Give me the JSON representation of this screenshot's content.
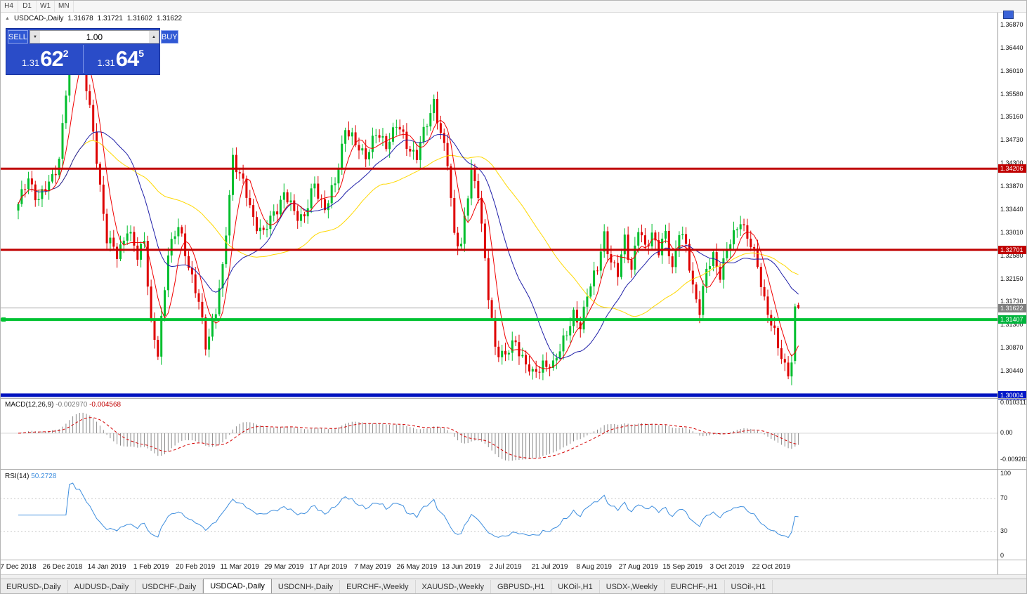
{
  "toolbar": {
    "timeframes": [
      "H4",
      "D1",
      "W1",
      "MN"
    ]
  },
  "icons": {
    "collapse": "▲",
    "vol_down": "▼",
    "vol_up": "▲"
  },
  "chart": {
    "title": "USDCAD-,Daily",
    "o": "1.31678",
    "h": "1.31721",
    "l": "1.31602",
    "c": "1.31622"
  },
  "one_click": {
    "sell_label": "SELL",
    "buy_label": "BUY",
    "volume": "1.00",
    "sell_big": "1.31",
    "sell_pips": "62",
    "sell_sup": "2",
    "buy_big": "1.31",
    "buy_pips": "64",
    "buy_sup": "5"
  },
  "price_axis": {
    "ticks": [
      "1.36870",
      "1.36440",
      "1.36010",
      "1.35580",
      "1.35160",
      "1.34730",
      "1.34300",
      "1.33870",
      "1.33440",
      "1.33010",
      "1.32580",
      "1.32150",
      "1.31730",
      "1.31300",
      "1.30870",
      "1.30440"
    ],
    "badges": [
      {
        "label": "1.34206",
        "price": 1.34206,
        "color": "#C00000"
      },
      {
        "label": "1.32701",
        "price": 1.32701,
        "color": "#C00000"
      },
      {
        "label": "1.31622",
        "price": 1.31622,
        "color": "#808080"
      },
      {
        "label": "1.31407",
        "price": 1.31407,
        "color": "#00B43C"
      },
      {
        "label": "1.30004",
        "price": 1.30004,
        "color": "#0018C8"
      }
    ]
  },
  "hlines": [
    {
      "price": 1.34206,
      "color": "#C00000",
      "thickness": 3,
      "name": "resistance-line-upper"
    },
    {
      "price": 1.32701,
      "color": "#C00000",
      "thickness": 3,
      "name": "resistance-line-lower"
    },
    {
      "price": 1.31407,
      "color": "#00C232",
      "thickness": 4,
      "name": "support-line-green",
      "handle": true
    },
    {
      "price": 1.30004,
      "color": "#0013C0",
      "thickness": 5,
      "name": "support-line-blue"
    },
    {
      "price": 1.31622,
      "color": "#ababab",
      "thickness": 1,
      "name": "current-price-line",
      "under": true
    }
  ],
  "macd": {
    "label": "MACD(12,26,9)",
    "value_main": "-0.002970",
    "value_signal": "-0.004568",
    "axis": [
      {
        "label": "0.010311",
        "value": 0.010311
      },
      {
        "label": "0.00",
        "value": 0
      },
      {
        "label": "-0.009203",
        "value": -0.009203
      }
    ]
  },
  "rsi": {
    "label": "RSI(14)",
    "value": "50.2728",
    "axis": [
      {
        "label": "100",
        "value": 100
      },
      {
        "label": "70",
        "value": 70
      },
      {
        "label": "30",
        "value": 30
      },
      {
        "label": "0",
        "value": 0
      }
    ],
    "levels": [
      70,
      30
    ]
  },
  "date_axis": {
    "step": 13,
    "labels": [
      "7 Dec 2018",
      "26 Dec 2018",
      "14 Jan 2019",
      "1 Feb 2019",
      "20 Feb 2019",
      "11 Mar 2019",
      "29 Mar 2019",
      "17 Apr 2019",
      "7 May 2019",
      "26 May 2019",
      "13 Jun 2019",
      "2 Jul 2019",
      "21 Jul 2019",
      "8 Aug 2019",
      "27 Aug 2019",
      "15 Sep 2019",
      "3 Oct 2019",
      "22 Oct 2019"
    ]
  },
  "tabs": {
    "active": "USDCAD-,Daily",
    "items": [
      "EURUSD-,Daily",
      "AUDUSD-,Daily",
      "USDCHF-,Daily",
      "USDCAD-,Daily",
      "USDCNH-,Daily",
      "EURCHF-,Weekly",
      "XAUUSD-,Weekly",
      "GBPUSD-,H1",
      "UKOil-,H1",
      "USDX-,Weekly",
      "EURCHF-,H1",
      "USOil-,H1"
    ],
    "note": "bottom chart tabs"
  },
  "chart_data": {
    "type": "candlestick",
    "symbol": "USDCAD",
    "timeframe": "Daily",
    "candle_count": 230,
    "ylim": [
      1.2995,
      1.371
    ],
    "colors": {
      "up": "#00BE2D",
      "down": "#DE0000",
      "ma_fast": "#F00000",
      "ma_mid": "#1F1FA8",
      "ma_slow": "#FFD800",
      "macd_hist": "#8A8A8A",
      "macd_signal": "#D40000",
      "rsi": "#3E8EDE"
    },
    "ma_periods": {
      "fast": 6,
      "mid": 20,
      "slow": 45
    },
    "noise_amp": 0.0015,
    "wick_amp": 0.0013,
    "macd_params": {
      "fast": 12,
      "slow": 26,
      "signal": 9
    },
    "rsi_period": 14,
    "waypoints": [
      [
        0,
        1.3355
      ],
      [
        3,
        1.34
      ],
      [
        6,
        1.3365
      ],
      [
        9,
        1.339
      ],
      [
        12,
        1.344
      ],
      [
        14,
        1.356
      ],
      [
        16,
        1.366
      ],
      [
        18,
        1.3635
      ],
      [
        20,
        1.357
      ],
      [
        23,
        1.344
      ],
      [
        26,
        1.329
      ],
      [
        29,
        1.326
      ],
      [
        32,
        1.331
      ],
      [
        35,
        1.3255
      ],
      [
        37,
        1.3295
      ],
      [
        39,
        1.313
      ],
      [
        41,
        1.3072
      ],
      [
        44,
        1.327
      ],
      [
        47,
        1.331
      ],
      [
        50,
        1.3245
      ],
      [
        53,
        1.317
      ],
      [
        55,
        1.3092
      ],
      [
        58,
        1.316
      ],
      [
        60,
        1.323
      ],
      [
        63,
        1.3445
      ],
      [
        66,
        1.339
      ],
      [
        69,
        1.333
      ],
      [
        72,
        1.3298
      ],
      [
        75,
        1.334
      ],
      [
        78,
        1.3372
      ],
      [
        81,
        1.334
      ],
      [
        84,
        1.3332
      ],
      [
        87,
        1.339
      ],
      [
        90,
        1.3348
      ],
      [
        93,
        1.339
      ],
      [
        96,
        1.35
      ],
      [
        99,
        1.3462
      ],
      [
        102,
        1.3448
      ],
      [
        105,
        1.3482
      ],
      [
        108,
        1.3468
      ],
      [
        111,
        1.35
      ],
      [
        114,
        1.3468
      ],
      [
        117,
        1.3442
      ],
      [
        120,
        1.3508
      ],
      [
        122,
        1.3548
      ],
      [
        124,
        1.348
      ],
      [
        126,
        1.3432
      ],
      [
        128,
        1.3302
      ],
      [
        130,
        1.3275
      ],
      [
        133,
        1.3418
      ],
      [
        135,
        1.338
      ],
      [
        138,
        1.318
      ],
      [
        140,
        1.3092
      ],
      [
        143,
        1.3072
      ],
      [
        146,
        1.31
      ],
      [
        149,
        1.3058
      ],
      [
        151,
        1.3035
      ],
      [
        154,
        1.3062
      ],
      [
        157,
        1.305
      ],
      [
        160,
        1.3108
      ],
      [
        163,
        1.3145
      ],
      [
        165,
        1.3125
      ],
      [
        167,
        1.3195
      ],
      [
        170,
        1.3232
      ],
      [
        172,
        1.3298
      ],
      [
        174,
        1.3252
      ],
      [
        176,
        1.3222
      ],
      [
        178,
        1.329
      ],
      [
        180,
        1.3238
      ],
      [
        182,
        1.3308
      ],
      [
        184,
        1.327
      ],
      [
        186,
        1.3305
      ],
      [
        188,
        1.3268
      ],
      [
        190,
        1.3295
      ],
      [
        192,
        1.3238
      ],
      [
        194,
        1.3308
      ],
      [
        196,
        1.3272
      ],
      [
        198,
        1.3202
      ],
      [
        200,
        1.3162
      ],
      [
        202,
        1.3228
      ],
      [
        204,
        1.3258
      ],
      [
        206,
        1.3228
      ],
      [
        208,
        1.3268
      ],
      [
        210,
        1.3295
      ],
      [
        212,
        1.333
      ],
      [
        214,
        1.3292
      ],
      [
        217,
        1.3242
      ],
      [
        219,
        1.318
      ],
      [
        221,
        1.313
      ],
      [
        223,
        1.309
      ],
      [
        225,
        1.3058
      ],
      [
        226,
        1.3045
      ],
      [
        227,
        1.3062
      ],
      [
        228,
        1.3165
      ],
      [
        229,
        1.3162
      ]
    ],
    "final_candles": [
      {
        "o": 1.3064,
        "h": 1.317,
        "l": 1.3058,
        "c": 1.3165
      },
      {
        "o": 1.31678,
        "h": 1.31721,
        "l": 1.31602,
        "c": 1.31622
      }
    ]
  }
}
